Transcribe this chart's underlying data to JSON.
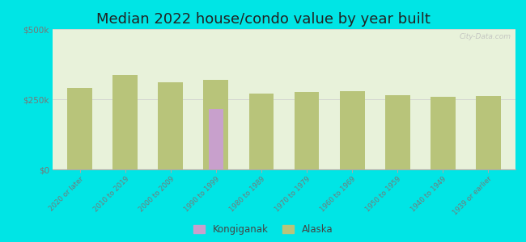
{
  "title": "Median 2022 house/condo value by year built",
  "categories": [
    "2020 or later",
    "2010 to 2019",
    "2000 to 2009",
    "1990 to 1999",
    "1980 to 1989",
    "1970 to 1979",
    "1960 to 1969",
    "1950 to 1959",
    "1940 to 1949",
    "1939 or earlier"
  ],
  "alaska_values": [
    290000,
    335000,
    310000,
    320000,
    270000,
    275000,
    280000,
    265000,
    260000,
    262000
  ],
  "kongiganak_values": [
    null,
    null,
    null,
    215000,
    null,
    null,
    null,
    null,
    null,
    null
  ],
  "alaska_color": "#b8c47a",
  "kongiganak_color": "#c8a0cc",
  "background_color": "#00e5e5",
  "plot_bg_color": "#e8f2da",
  "yticks": [
    0,
    250000,
    500000
  ],
  "ylim": [
    0,
    500000
  ],
  "watermark": "City-Data.com",
  "legend_labels": [
    "Kongiganak",
    "Alaska"
  ],
  "title_fontsize": 13,
  "bar_width": 0.55
}
